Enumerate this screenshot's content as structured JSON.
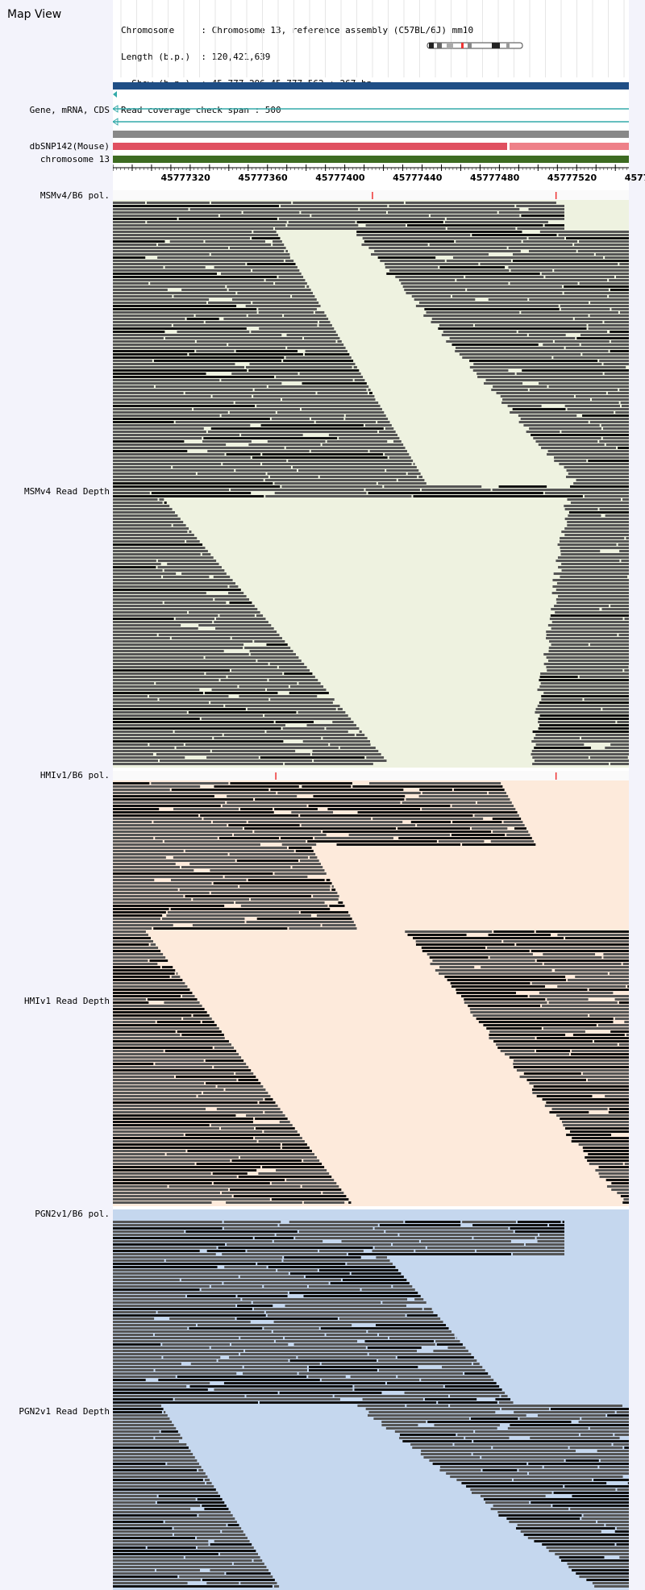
{
  "header": {
    "title": "Map View",
    "info_lines": [
      "Chromosome     : Chromosome 13, reference assembly (C57BL/6J) mm10",
      "Length (b.p.)  : 120,421,639",
      "  Show (b.p.)  : 45,777,296-45,777,562 : 267 bp",
      "Read coverage check span : 500"
    ]
  },
  "track_labels": {
    "gene": "Gene, mRNA, CDS",
    "dbsnp": "dbSNP142(Mouse)",
    "chromosome": "chromosome 13",
    "msm_pol": "MSMv4/B6 pol.",
    "msm_depth": "MSMv4 Read Depth",
    "hmi_pol": "HMIv1/B6 pol.",
    "hmi_depth": "HMIv1 Read Depth",
    "pgn_pol": "PGN2v1/B6 pol.",
    "pgn_depth": "PGN2v1 Read Depth"
  },
  "axis": {
    "start": 45777296,
    "end": 45777562,
    "tick_labels": [
      "45777320",
      "45777360",
      "45777400",
      "45777440",
      "45777480",
      "45777520",
      "4577"
    ]
  },
  "colors": {
    "gene_bar": "#1f4e85",
    "gene_line": "#33aaaa",
    "snp_grey": "#888888",
    "snp_red": "#e05060",
    "snp_pink": "#ee8088",
    "chrom_green": "#3d6b22",
    "read_dark": "#555555",
    "read_black": "#111111",
    "msm_bg": "#eef2e0",
    "hmi_bg": "#fdeadb",
    "pgn_bg": "#c5d7ee",
    "pol_mark": "#ee3333"
  },
  "polymorphisms": {
    "msm": [
      45777430,
      45777525
    ],
    "hmi": [
      45777380,
      45777525
    ]
  }
}
